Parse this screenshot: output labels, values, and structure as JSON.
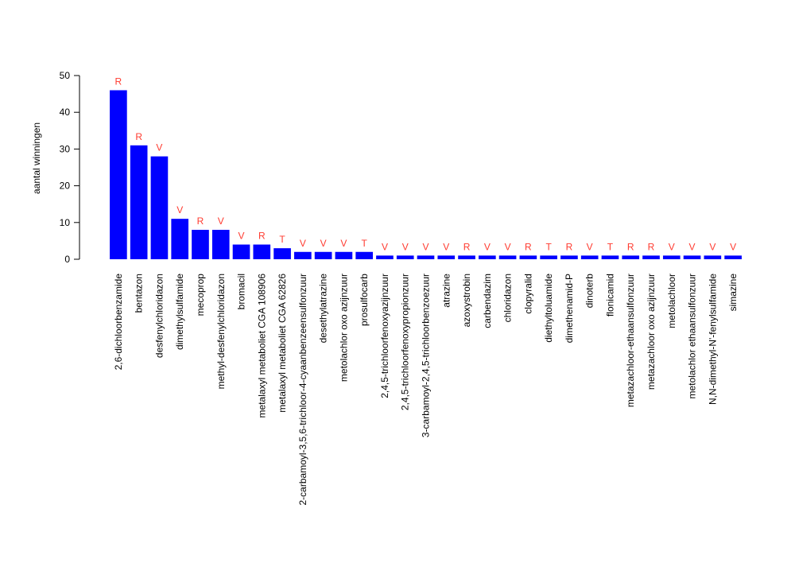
{
  "chart_data": {
    "type": "bar",
    "title": "",
    "xlabel": "",
    "ylabel": "aantal winningen",
    "ylim": [
      0,
      50
    ],
    "yticks": [
      0,
      10,
      20,
      30,
      40,
      50
    ],
    "grid": false,
    "legend": "none",
    "bar_color": "#0000ff",
    "label_color": "#ff3b30",
    "categories": [
      "2,6-dichloorbenzamide",
      "bentazon",
      "desfenylchloridazon",
      "dimethylsulfamide",
      "mecoprop",
      "methyl-desfenylchloridazon",
      "bromacil",
      "metalaxyl metaboliet CGA 108906",
      "metalaxyl metaboliet CGA 62826",
      "2-carbamoyl-3,5,6-trichloor-4-cyaanbenzeensulfonzuur",
      "desethylatrazine",
      "metolachlor oxo azijnzuur",
      "prosulfocarb",
      "2,4,5-trichloorfenoxyazijnzuur",
      "2,4,5-trichloorfenoxypropionzuur",
      "3-carbamoyl-2,4,5-trichloorbenzoezuur",
      "atrazine",
      "azoxystrobin",
      "carbendazim",
      "chloridazon",
      "clopyralid",
      "diethyltoluamide",
      "dimethenamid-P",
      "dinoterb",
      "flonicamid",
      "metazachloor-ethaansulfonzuur",
      "metazachloor oxo azijnzuur",
      "metolachloor",
      "metolachlor ethaansulfonzuur",
      "N,N-dimethyl-N'-fenylsulfamide",
      "simazine"
    ],
    "values": [
      46,
      31,
      28,
      11,
      8,
      8,
      4,
      4,
      3,
      2,
      2,
      2,
      2,
      1,
      1,
      1,
      1,
      1,
      1,
      1,
      1,
      1,
      1,
      1,
      1,
      1,
      1,
      1,
      1,
      1,
      1
    ],
    "bar_labels": [
      "R",
      "R",
      "V",
      "V",
      "R",
      "V",
      "V",
      "R",
      "T",
      "V",
      "V",
      "V",
      "T",
      "V",
      "V",
      "V",
      "V",
      "R",
      "V",
      "V",
      "R",
      "T",
      "R",
      "V",
      "T",
      "R",
      "R",
      "V",
      "V",
      "V",
      "V"
    ]
  }
}
